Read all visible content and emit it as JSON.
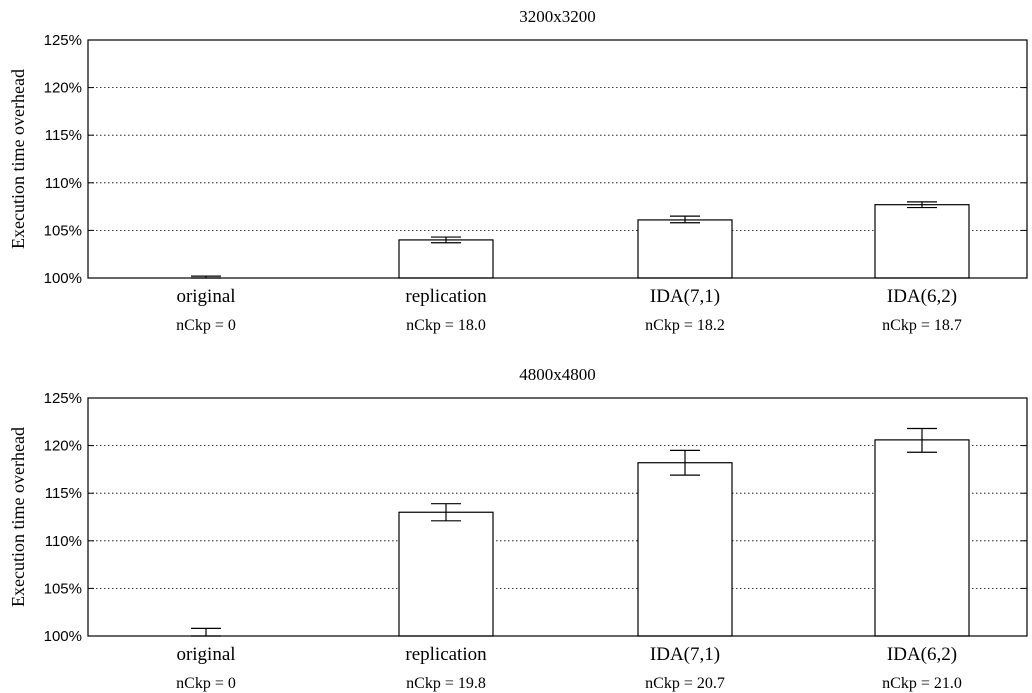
{
  "chart_data": [
    {
      "type": "bar",
      "title": "3200x3200",
      "ylabel": "Execution time overhead",
      "ylim": [
        100,
        125
      ],
      "yticks": [
        "100%",
        "105%",
        "110%",
        "115%",
        "120%",
        "125%"
      ],
      "grid": true,
      "categories": [
        "original",
        "replication",
        "IDA(7,1)",
        "IDA(6,2)"
      ],
      "sublabels": [
        "nCkp = 0",
        "nCkp = 18.0",
        "nCkp = 18.2",
        "nCkp = 18.7"
      ],
      "values": [
        100.0,
        104.0,
        106.1,
        107.7
      ],
      "error_low": [
        100.0,
        103.7,
        105.8,
        107.4
      ],
      "error_high": [
        100.2,
        104.3,
        106.5,
        108.0
      ]
    },
    {
      "type": "bar",
      "title": "4800x4800",
      "ylabel": "Execution time overhead",
      "ylim": [
        100,
        125
      ],
      "yticks": [
        "100%",
        "105%",
        "110%",
        "115%",
        "120%",
        "125%"
      ],
      "grid": true,
      "categories": [
        "original",
        "replication",
        "IDA(7,1)",
        "IDA(6,2)"
      ],
      "sublabels": [
        "nCkp = 0",
        "nCkp = 19.8",
        "nCkp = 20.7",
        "nCkp = 21.0"
      ],
      "values": [
        100.0,
        113.0,
        118.2,
        120.6
      ],
      "error_low": [
        100.0,
        112.1,
        116.9,
        119.3
      ],
      "error_high": [
        100.8,
        113.9,
        119.5,
        121.8
      ]
    }
  ]
}
